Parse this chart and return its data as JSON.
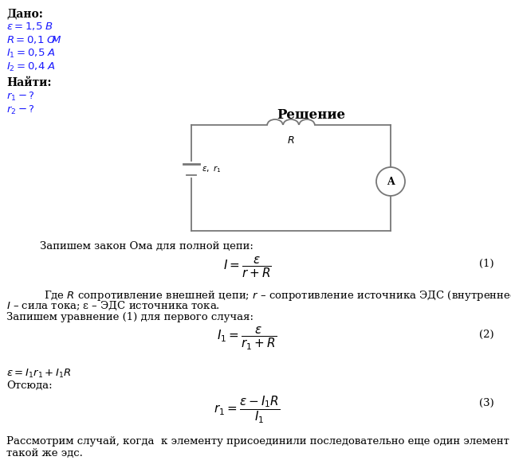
{
  "title": "Решение",
  "dado_title": "Дано:",
  "dado_lines": [
    "$\\varepsilon = 1{,}5\\ \\mathit{B}$",
    "$R = 0{,}1\\ \\mathit{O\\!\\mathit{\\!M}}$",
    "$I_1 = 0{,}5\\ \\mathit{A}$",
    "$I_2 = 0{,}4\\ \\mathit{A}$"
  ],
  "najti_title": "Найти:",
  "najti_lines": [
    "$r_1 - ?$",
    "$r_2 - ?$"
  ],
  "text1": "Запишем закон Ома для полной цепи:",
  "formula1": "$I = \\dfrac{\\varepsilon}{r + R}$",
  "formula1_num": "(1)",
  "text2": "Где $R$ сопротивление внешней цепи; $r$ – сопротивление источника ЭДС (внутреннее);",
  "text2b": "$I$ – сила тока; ε – ЭДС источника тока.",
  "text3": "Запишем уравнение (1) для первого случая:",
  "formula2": "$I_1 = \\dfrac{\\varepsilon}{r_1 + R}$",
  "formula2_num": "(2)",
  "formula3_pre": "$\\varepsilon = I_1 r_1 + I_1 R$",
  "text4": "Отсюда:",
  "formula3": "$r_1 = \\dfrac{\\varepsilon - I_1 R}{I_1}$",
  "formula3_num": "(3)",
  "text5": "Рассмотрим случай, когда  к элементу присоединили последовательно еще один элемент с",
  "text5b": "такой же эдс.",
  "bg_color": "#ffffff",
  "text_color": "#000000",
  "circuit_color": "#777777",
  "dado_color": "#1a1aff"
}
